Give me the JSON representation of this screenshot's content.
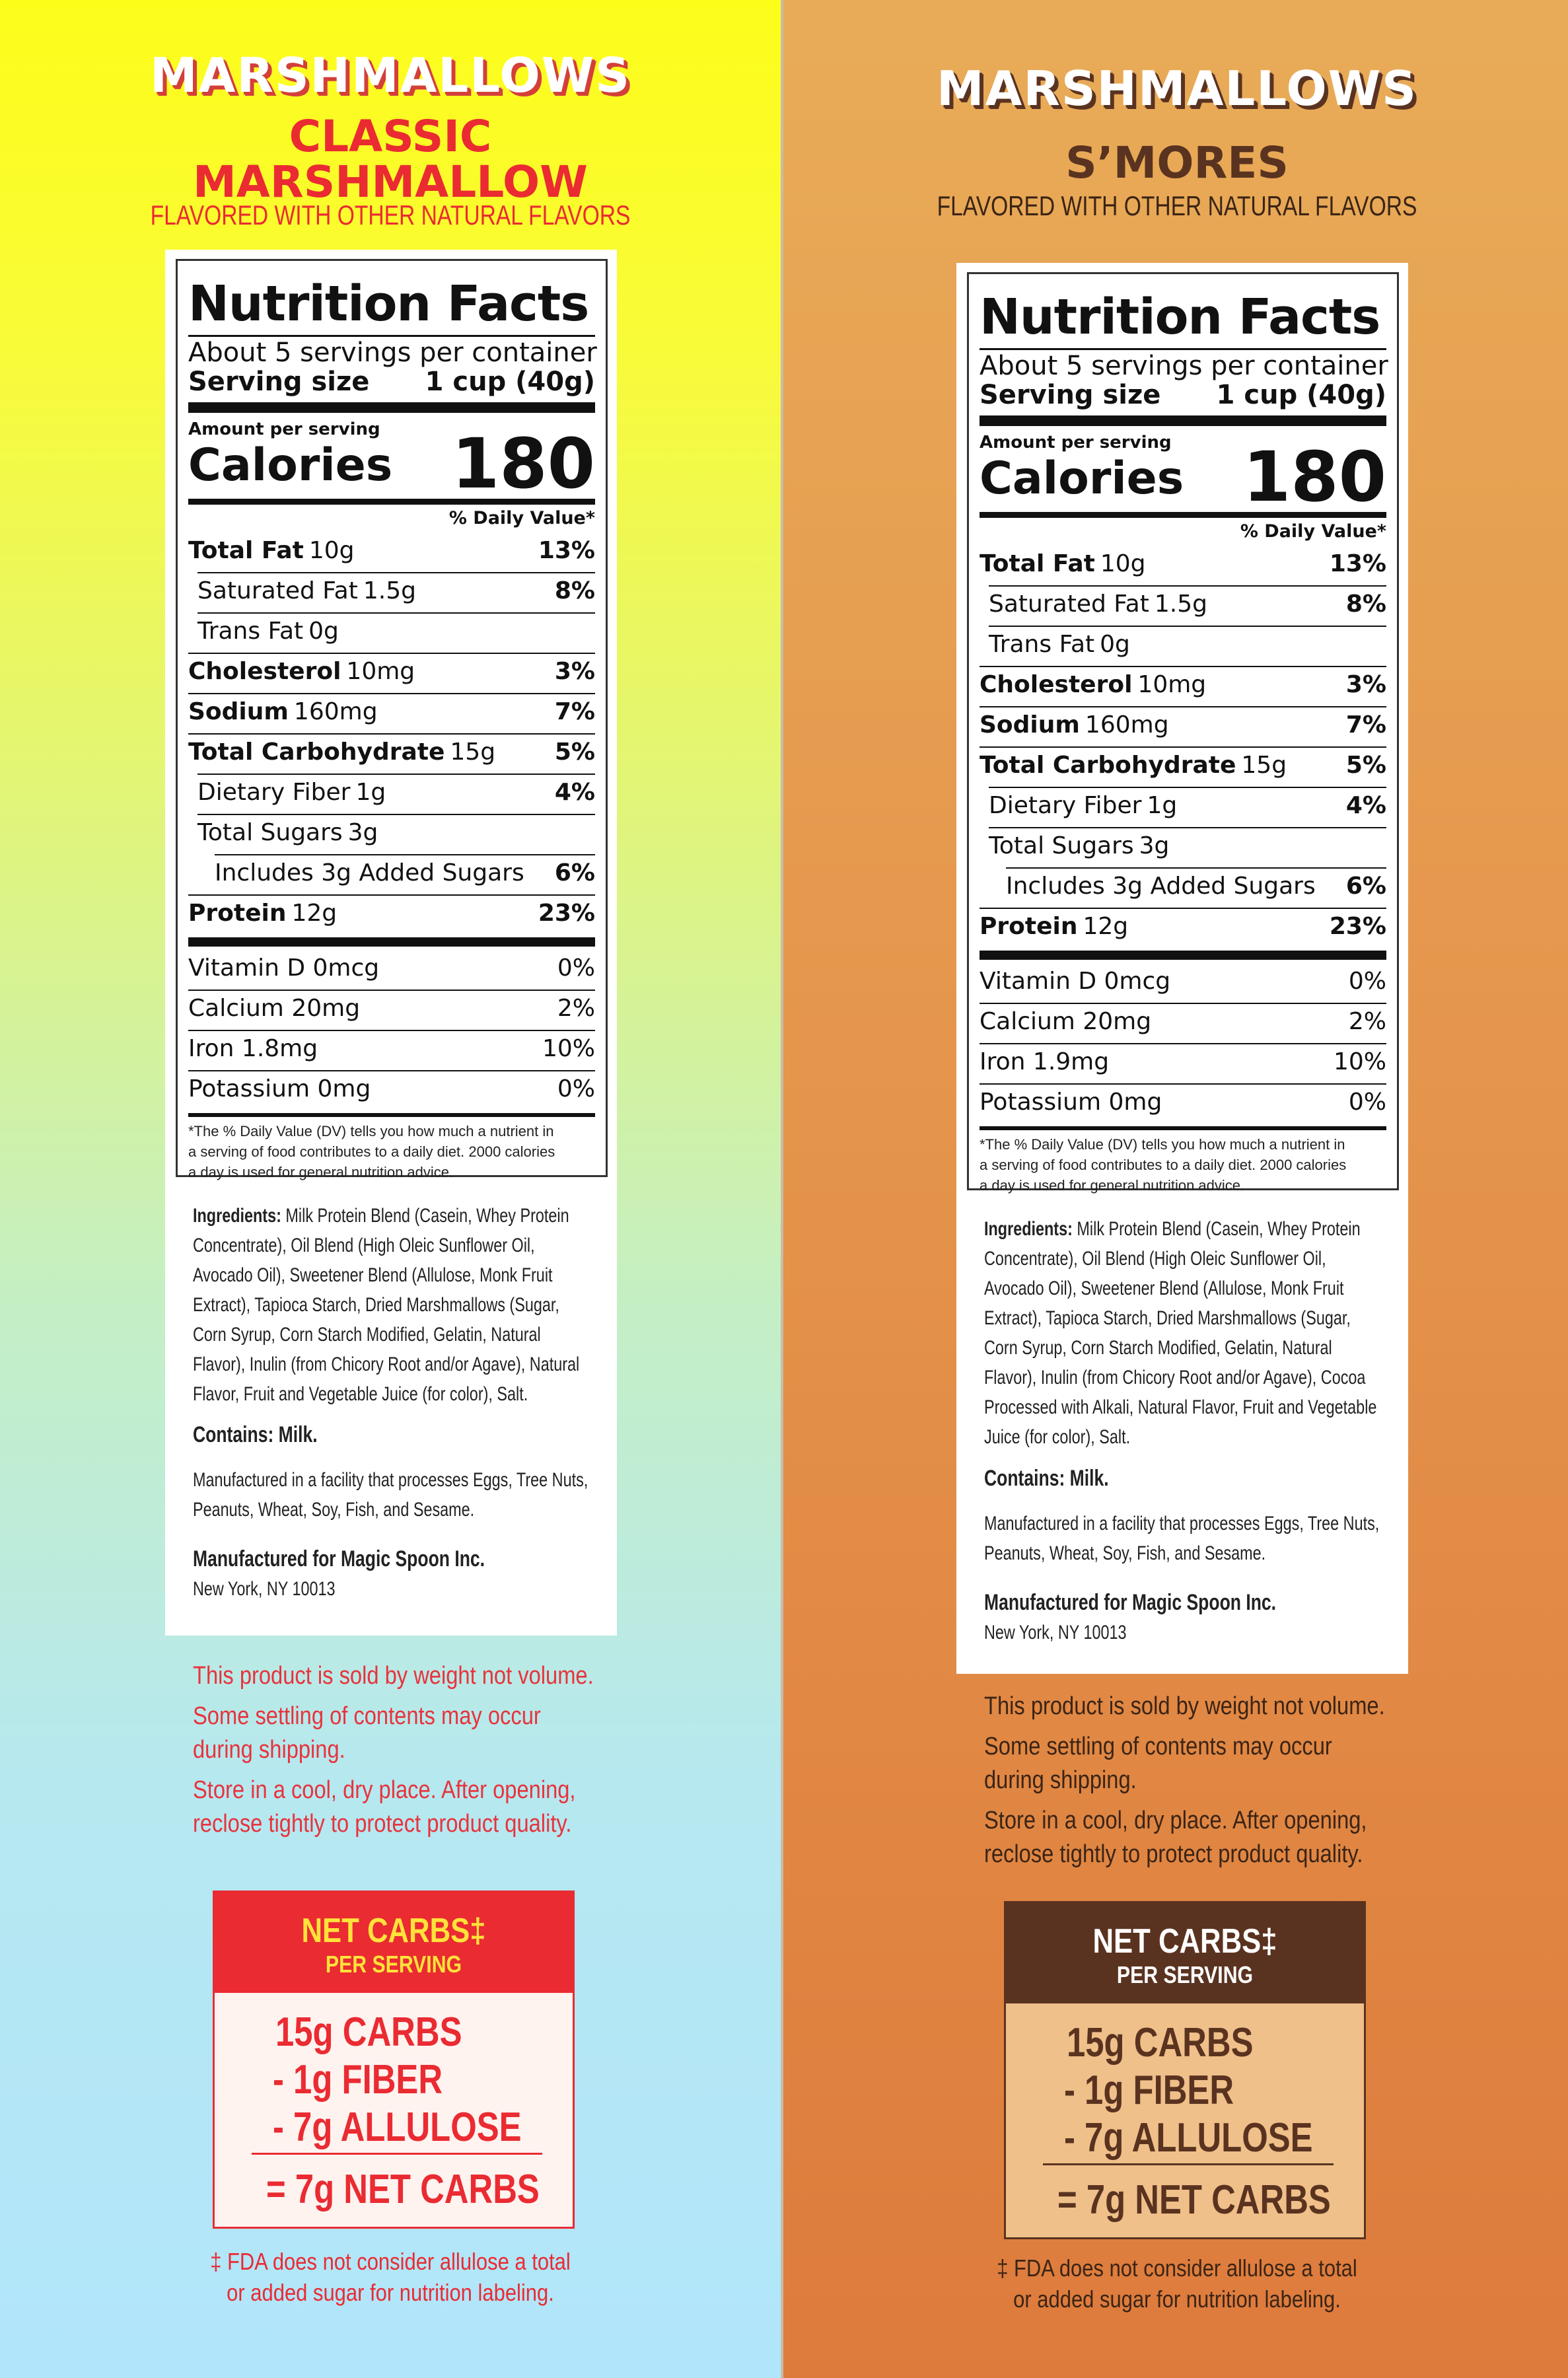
{
  "colors": {
    "left_accent": "#ea2b32",
    "left_header_text": "#ffe23a",
    "right_accent": "#5a3320",
    "right_text": "#3b2415"
  },
  "panels": [
    {
      "brand": "MARSHMALLOWS",
      "flavor_line1": "CLASSIC",
      "flavor_line2": "MARSHMALLOW",
      "subtitle": "FLAVORED WITH OTHER NATURAL FLAVORS",
      "nutrition": {
        "title": "Nutrition Facts",
        "servings": "About 5 servings per container",
        "serving_size_label": "Serving size",
        "serving_size_value": "1 cup (40g)",
        "amount_per_serving": "Amount per serving",
        "calories_label": "Calories",
        "calories_value": "180",
        "dv_header": "% Daily Value*",
        "rows": [
          {
            "label": "Total Fat",
            "amount": "10g",
            "dv": "13%"
          },
          {
            "label": "Saturated Fat",
            "amount": "1.5g",
            "dv": "8%"
          },
          {
            "label": "Trans Fat",
            "amount": "0g",
            "dv": ""
          },
          {
            "label": "Cholesterol",
            "amount": "10mg",
            "dv": "3%"
          },
          {
            "label": "Sodium",
            "amount": "160mg",
            "dv": "7%"
          },
          {
            "label": "Total Carbohydrate",
            "amount": "15g",
            "dv": "5%"
          },
          {
            "label": "Dietary Fiber",
            "amount": "1g",
            "dv": "4%"
          },
          {
            "label": "Total Sugars",
            "amount": "3g",
            "dv": ""
          },
          {
            "label": "Includes 3g Added Sugars",
            "amount": "",
            "dv": "6%"
          },
          {
            "label": "Protein",
            "amount": "12g",
            "dv": "23%"
          }
        ],
        "vitamins": [
          {
            "label": "Vitamin D 0mcg",
            "dv": "0%"
          },
          {
            "label": "Calcium 20mg",
            "dv": "2%"
          },
          {
            "label": "Iron 1.8mg",
            "dv": "10%"
          },
          {
            "label": "Potassium 0mg",
            "dv": "0%"
          }
        ],
        "footnote": "*The % Daily Value (DV) tells you how much a nutrient in a serving of food contributes to a daily diet. 2000 calories a day is used for general nutrition advice."
      },
      "ingredients_label": "Ingredients:",
      "ingredients_text": "Milk Protein Blend (Casein, Whey Protein Concentrate), Oil Blend (High Oleic Sunflower Oil, Avocado Oil), Sweetener Blend (Allulose, Monk Fruit Extract), Tapioca Starch, Dried Marshmallows (Sugar, Corn Syrup, Corn Starch Modified, Gelatin, Natural Flavor), Inulin (from Chicory Root and/or Agave), Natural Flavor, Fruit and Vegetable Juice (for color), Salt.",
      "contains": "Contains: Milk.",
      "facility": "Manufactured in a facility that processes Eggs, Tree Nuts, Peanuts, Wheat, Soy, Fish, and Sesame.",
      "manufacturer": "Manufactured for Magic Spoon Inc.",
      "address": "New York, NY 10013",
      "notes": [
        "This product is sold by weight not volume.",
        "Some settling of contents may occur",
        "during shipping.",
        "Store in a cool, dry place. After opening,",
        "reclose tightly to protect product quality."
      ],
      "net_carbs": {
        "title": "NET CARBS‡",
        "subtitle": "PER SERVING",
        "lines": [
          "15g  CARBS",
          "- 1g  FIBER",
          "- 7g  ALLULOSE"
        ],
        "result": "= 7g  NET CARBS"
      },
      "footer1": "‡ FDA does not consider allulose a total",
      "footer2": "or added sugar for nutrition labeling."
    },
    {
      "brand": "MARSHMALLOWS",
      "flavor_line1": "S’MORES",
      "subtitle": "FLAVORED WITH OTHER NATURAL FLAVORS",
      "nutrition": {
        "title": "Nutrition Facts",
        "servings": "About 5 servings per container",
        "serving_size_label": "Serving size",
        "serving_size_value": "1 cup (40g)",
        "amount_per_serving": "Amount per serving",
        "calories_label": "Calories",
        "calories_value": "180",
        "dv_header": "% Daily Value*",
        "rows": [
          {
            "label": "Total Fat",
            "amount": "10g",
            "dv": "13%"
          },
          {
            "label": "Saturated Fat",
            "amount": "1.5g",
            "dv": "8%"
          },
          {
            "label": "Trans Fat",
            "amount": "0g",
            "dv": ""
          },
          {
            "label": "Cholesterol",
            "amount": "10mg",
            "dv": "3%"
          },
          {
            "label": "Sodium",
            "amount": "160mg",
            "dv": "7%"
          },
          {
            "label": "Total Carbohydrate",
            "amount": "15g",
            "dv": "5%"
          },
          {
            "label": "Dietary Fiber",
            "amount": "1g",
            "dv": "4%"
          },
          {
            "label": "Total Sugars",
            "amount": "3g",
            "dv": ""
          },
          {
            "label": "Includes 3g Added Sugars",
            "amount": "",
            "dv": "6%"
          },
          {
            "label": "Protein",
            "amount": "12g",
            "dv": "23%"
          }
        ],
        "vitamins": [
          {
            "label": "Vitamin D 0mcg",
            "dv": "0%"
          },
          {
            "label": "Calcium 20mg",
            "dv": "2%"
          },
          {
            "label": "Iron 1.9mg",
            "dv": "10%"
          },
          {
            "label": "Potassium 0mg",
            "dv": "0%"
          }
        ],
        "footnote": "*The % Daily Value (DV) tells you how much a nutrient in a serving of food contributes to a daily diet. 2000 calories a day is used for general nutrition advice."
      },
      "ingredients_label": "Ingredients:",
      "ingredients_text": "Milk Protein Blend (Casein, Whey Protein Concentrate), Oil Blend (High Oleic Sunflower Oil, Avocado Oil), Sweetener Blend (Allulose, Monk Fruit Extract), Tapioca Starch, Dried Marshmallows (Sugar, Corn Syrup, Corn Starch Modified, Gelatin, Natural Flavor), Inulin (from Chicory Root and/or Agave), Cocoa Processed with Alkali, Natural Flavor, Fruit and Vegetable Juice (for color), Salt.",
      "contains": "Contains: Milk.",
      "facility": "Manufactured in a facility that processes Eggs, Tree Nuts, Peanuts, Wheat, Soy, Fish, and Sesame.",
      "manufacturer": "Manufactured for Magic Spoon Inc.",
      "address": "New York, NY 10013",
      "notes": [
        "This product is sold by weight not volume.",
        "Some settling of contents may occur",
        "during shipping.",
        "Store in a cool, dry place. After opening,",
        "reclose tightly to protect product quality."
      ],
      "net_carbs": {
        "title": "NET CARBS‡",
        "subtitle": "PER SERVING",
        "lines": [
          "15g  CARBS",
          "- 1g  FIBER",
          "- 7g  ALLULOSE"
        ],
        "result": "= 7g  NET CARBS"
      },
      "footer1": "‡ FDA does not consider allulose a total",
      "footer2": "or added sugar for nutrition labeling."
    }
  ]
}
